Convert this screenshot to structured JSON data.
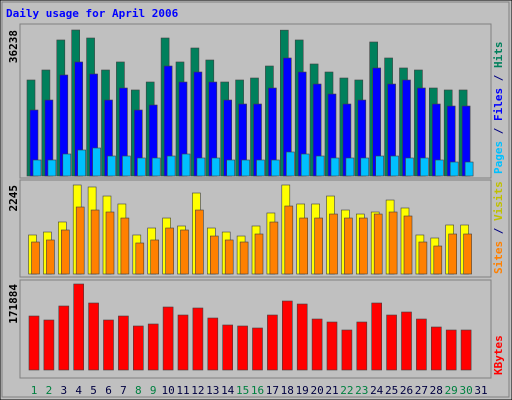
{
  "legend_separator": " / ",
  "chart_data": [
    {
      "type": "bar",
      "title": "Daily usage for April 2006",
      "ylim": [
        0,
        36238
      ],
      "yticks": [
        36238
      ],
      "series": [
        {
          "name": "Hits",
          "color": "#00805c",
          "values": [
            23830,
            26310,
            33760,
            36238,
            34250,
            26310,
            28300,
            21350,
            23330,
            34250,
            28300,
            31770,
            28790,
            23330,
            23830,
            24320,
            27300,
            36200,
            33760,
            27800,
            25810,
            24320,
            23830,
            33260,
            29290,
            26810,
            26310,
            21840,
            21350,
            21350,
            null
          ]
        },
        {
          "name": "Files",
          "color": "#0000ff",
          "values": [
            16380,
            18860,
            25070,
            28300,
            25320,
            18860,
            21840,
            16380,
            17620,
            27300,
            23330,
            25810,
            23330,
            18860,
            17870,
            17870,
            21840,
            29290,
            25810,
            22830,
            20350,
            17870,
            18860,
            26810,
            22830,
            23830,
            21840,
            17870,
            17370,
            17370,
            null
          ]
        },
        {
          "name": "Pages",
          "color": "#00c0ff",
          "values": [
            3970,
            3970,
            5460,
            6450,
            6950,
            4960,
            4960,
            4470,
            4470,
            4960,
            5460,
            4470,
            4470,
            3970,
            3970,
            3970,
            3970,
            5960,
            5460,
            4960,
            4470,
            4470,
            4470,
            4960,
            4960,
            4470,
            4470,
            3970,
            3470,
            3470,
            null
          ]
        }
      ]
    },
    {
      "type": "bar",
      "ylim": [
        0,
        2245
      ],
      "yticks": [
        2245
      ],
      "series": [
        {
          "name": "Visits",
          "color": "#ffff00",
          "values": [
            984,
            1059,
            1312,
            2245,
            2195,
            1967,
            1766,
            984,
            1160,
            1412,
            1211,
            2043,
            1160,
            1059,
            958,
            1211,
            1539,
            2245,
            1766,
            1766,
            1967,
            1614,
            1513,
            1564,
            1866,
            1665,
            984,
            908,
            1236,
            1236,
            null
          ]
        },
        {
          "name": "Sites",
          "color": "#ff8000",
          "values": [
            807,
            858,
            1110,
            1690,
            1614,
            1564,
            1412,
            782,
            858,
            1160,
            1110,
            1614,
            958,
            858,
            807,
            1009,
            1311,
            1715,
            1412,
            1412,
            1513,
            1412,
            1412,
            1513,
            1564,
            1463,
            807,
            706,
            1009,
            1009,
            null
          ]
        }
      ]
    },
    {
      "type": "bar",
      "ylim": [
        0,
        171884
      ],
      "yticks": [
        171884
      ],
      "categories": [
        "1",
        "2",
        "3",
        "4",
        "5",
        "6",
        "7",
        "8",
        "9",
        "10",
        "11",
        "12",
        "13",
        "14",
        "15",
        "16",
        "17",
        "18",
        "19",
        "20",
        "21",
        "22",
        "23",
        "24",
        "25",
        "26",
        "27",
        "28",
        "29",
        "30",
        "31"
      ],
      "category_colors": [
        "#008040",
        "#008040",
        "#000040",
        "#000040",
        "#000040",
        "#000040",
        "#000040",
        "#008040",
        "#008040",
        "#000040",
        "#000040",
        "#000040",
        "#000040",
        "#000040",
        "#008040",
        "#008040",
        "#000040",
        "#000040",
        "#000040",
        "#000040",
        "#000040",
        "#008040",
        "#008040",
        "#000040",
        "#000040",
        "#000040",
        "#000040",
        "#000040",
        "#008040",
        "#008040",
        "#000040"
      ],
      "series": [
        {
          "name": "KBytes",
          "color": "#ff0000",
          "values": [
            107900,
            99930,
            127900,
            171884,
            133900,
            99930,
            107900,
            87940,
            91940,
            125900,
            109900,
            123900,
            103900,
            89940,
            87940,
            83940,
            109900,
            137900,
            131900,
            101900,
            95930,
            79940,
            95930,
            133900,
            109900,
            115900,
            101900,
            85940,
            79940,
            79940,
            null
          ]
        }
      ]
    }
  ]
}
